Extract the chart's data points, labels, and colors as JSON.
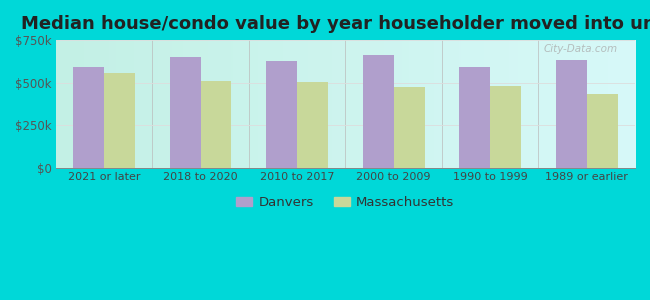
{
  "title": "Median house/condo value by year householder moved into unit",
  "categories": [
    "2021 or later",
    "2018 to 2020",
    "2010 to 2017",
    "2000 to 2009",
    "1990 to 1999",
    "1989 or earlier"
  ],
  "danvers_values": [
    590000,
    650000,
    625000,
    660000,
    590000,
    635000
  ],
  "massachusetts_values": [
    555000,
    510000,
    505000,
    475000,
    480000,
    430000
  ],
  "danvers_color": "#b09fcc",
  "massachusetts_color": "#c8d89a",
  "background_color": "#00d8d8",
  "ylim": [
    0,
    750000
  ],
  "yticks": [
    0,
    250000,
    500000,
    750000
  ],
  "ytick_labels": [
    "$0",
    "$250k",
    "$500k",
    "$750k"
  ],
  "legend_danvers": "Danvers",
  "legend_massachusetts": "Massachusetts",
  "title_fontsize": 13,
  "bar_width": 0.32,
  "watermark_text": "City-Data.com"
}
